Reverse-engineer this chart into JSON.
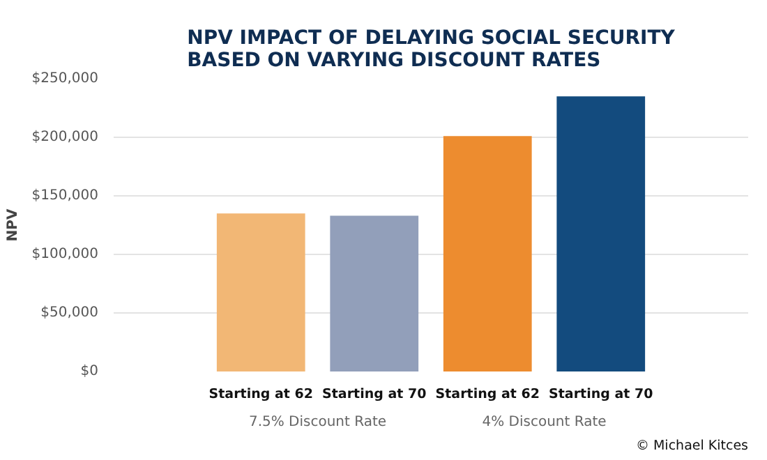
{
  "chart_data": {
    "type": "bar",
    "title": "NPV IMPACT OF DELAYING SOCIAL SECURITY\nBASED ON VARYING DISCOUNT RATES",
    "ylabel": "NPV",
    "categories": [
      "Starting at 62",
      "Starting at 70",
      "Starting at 62",
      "Starting at 70"
    ],
    "values": [
      135000,
      133000,
      201000,
      235000
    ],
    "colors": [
      "#f2b775",
      "#929fba",
      "#ed8c2f",
      "#134b7e"
    ],
    "ylim": [
      0,
      250000
    ],
    "yticks": [
      {
        "value": 0,
        "label": "$0"
      },
      {
        "value": 50000,
        "label": "$50,000"
      },
      {
        "value": 100000,
        "label": "$100,000"
      },
      {
        "value": 150000,
        "label": "$150,000"
      },
      {
        "value": 200000,
        "label": "$200,000"
      },
      {
        "value": 250000,
        "label": "$250,000"
      }
    ],
    "grid": "y",
    "annotations": [
      "7.5% Discount Rate",
      "4% Discount Rate",
      "© Michael Kitces"
    ]
  }
}
